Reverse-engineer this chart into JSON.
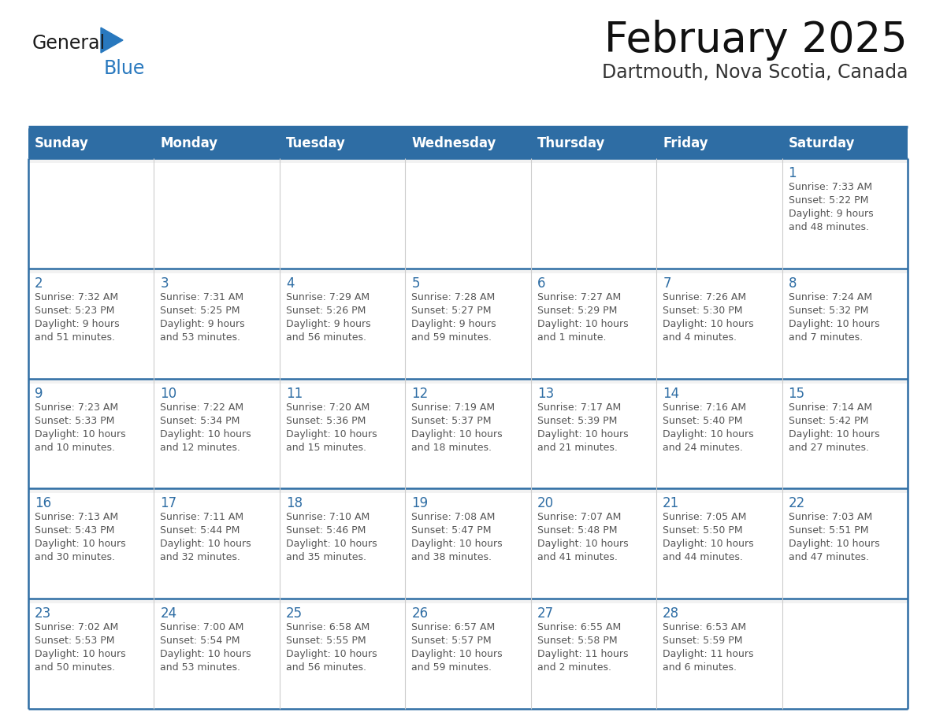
{
  "title": "February 2025",
  "subtitle": "Dartmouth, Nova Scotia, Canada",
  "days_of_week": [
    "Sunday",
    "Monday",
    "Tuesday",
    "Wednesday",
    "Thursday",
    "Friday",
    "Saturday"
  ],
  "header_bg": "#2E6DA4",
  "header_text": "#FFFFFF",
  "cell_bg_white": "#FFFFFF",
  "cell_bg_gray": "#F2F2F2",
  "day_num_color": "#2E6DA4",
  "text_color": "#555555",
  "border_color": "#2E6DA4",
  "logo_general_color": "#1a1a1a",
  "logo_blue_color": "#2878BE",
  "weeks": [
    {
      "days": [
        {
          "date": "",
          "info": ""
        },
        {
          "date": "",
          "info": ""
        },
        {
          "date": "",
          "info": ""
        },
        {
          "date": "",
          "info": ""
        },
        {
          "date": "",
          "info": ""
        },
        {
          "date": "",
          "info": ""
        },
        {
          "date": "1",
          "info": "Sunrise: 7:33 AM\nSunset: 5:22 PM\nDaylight: 9 hours\nand 48 minutes."
        }
      ]
    },
    {
      "days": [
        {
          "date": "2",
          "info": "Sunrise: 7:32 AM\nSunset: 5:23 PM\nDaylight: 9 hours\nand 51 minutes."
        },
        {
          "date": "3",
          "info": "Sunrise: 7:31 AM\nSunset: 5:25 PM\nDaylight: 9 hours\nand 53 minutes."
        },
        {
          "date": "4",
          "info": "Sunrise: 7:29 AM\nSunset: 5:26 PM\nDaylight: 9 hours\nand 56 minutes."
        },
        {
          "date": "5",
          "info": "Sunrise: 7:28 AM\nSunset: 5:27 PM\nDaylight: 9 hours\nand 59 minutes."
        },
        {
          "date": "6",
          "info": "Sunrise: 7:27 AM\nSunset: 5:29 PM\nDaylight: 10 hours\nand 1 minute."
        },
        {
          "date": "7",
          "info": "Sunrise: 7:26 AM\nSunset: 5:30 PM\nDaylight: 10 hours\nand 4 minutes."
        },
        {
          "date": "8",
          "info": "Sunrise: 7:24 AM\nSunset: 5:32 PM\nDaylight: 10 hours\nand 7 minutes."
        }
      ]
    },
    {
      "days": [
        {
          "date": "9",
          "info": "Sunrise: 7:23 AM\nSunset: 5:33 PM\nDaylight: 10 hours\nand 10 minutes."
        },
        {
          "date": "10",
          "info": "Sunrise: 7:22 AM\nSunset: 5:34 PM\nDaylight: 10 hours\nand 12 minutes."
        },
        {
          "date": "11",
          "info": "Sunrise: 7:20 AM\nSunset: 5:36 PM\nDaylight: 10 hours\nand 15 minutes."
        },
        {
          "date": "12",
          "info": "Sunrise: 7:19 AM\nSunset: 5:37 PM\nDaylight: 10 hours\nand 18 minutes."
        },
        {
          "date": "13",
          "info": "Sunrise: 7:17 AM\nSunset: 5:39 PM\nDaylight: 10 hours\nand 21 minutes."
        },
        {
          "date": "14",
          "info": "Sunrise: 7:16 AM\nSunset: 5:40 PM\nDaylight: 10 hours\nand 24 minutes."
        },
        {
          "date": "15",
          "info": "Sunrise: 7:14 AM\nSunset: 5:42 PM\nDaylight: 10 hours\nand 27 minutes."
        }
      ]
    },
    {
      "days": [
        {
          "date": "16",
          "info": "Sunrise: 7:13 AM\nSunset: 5:43 PM\nDaylight: 10 hours\nand 30 minutes."
        },
        {
          "date": "17",
          "info": "Sunrise: 7:11 AM\nSunset: 5:44 PM\nDaylight: 10 hours\nand 32 minutes."
        },
        {
          "date": "18",
          "info": "Sunrise: 7:10 AM\nSunset: 5:46 PM\nDaylight: 10 hours\nand 35 minutes."
        },
        {
          "date": "19",
          "info": "Sunrise: 7:08 AM\nSunset: 5:47 PM\nDaylight: 10 hours\nand 38 minutes."
        },
        {
          "date": "20",
          "info": "Sunrise: 7:07 AM\nSunset: 5:48 PM\nDaylight: 10 hours\nand 41 minutes."
        },
        {
          "date": "21",
          "info": "Sunrise: 7:05 AM\nSunset: 5:50 PM\nDaylight: 10 hours\nand 44 minutes."
        },
        {
          "date": "22",
          "info": "Sunrise: 7:03 AM\nSunset: 5:51 PM\nDaylight: 10 hours\nand 47 minutes."
        }
      ]
    },
    {
      "days": [
        {
          "date": "23",
          "info": "Sunrise: 7:02 AM\nSunset: 5:53 PM\nDaylight: 10 hours\nand 50 minutes."
        },
        {
          "date": "24",
          "info": "Sunrise: 7:00 AM\nSunset: 5:54 PM\nDaylight: 10 hours\nand 53 minutes."
        },
        {
          "date": "25",
          "info": "Sunrise: 6:58 AM\nSunset: 5:55 PM\nDaylight: 10 hours\nand 56 minutes."
        },
        {
          "date": "26",
          "info": "Sunrise: 6:57 AM\nSunset: 5:57 PM\nDaylight: 10 hours\nand 59 minutes."
        },
        {
          "date": "27",
          "info": "Sunrise: 6:55 AM\nSunset: 5:58 PM\nDaylight: 11 hours\nand 2 minutes."
        },
        {
          "date": "28",
          "info": "Sunrise: 6:53 AM\nSunset: 5:59 PM\nDaylight: 11 hours\nand 6 minutes."
        },
        {
          "date": "",
          "info": ""
        }
      ]
    }
  ],
  "figsize": [
    11.88,
    9.18
  ],
  "dpi": 100
}
